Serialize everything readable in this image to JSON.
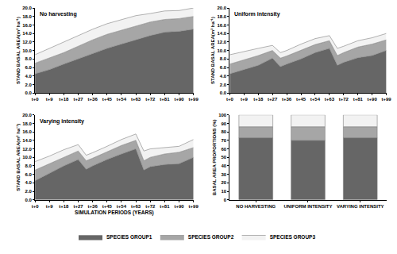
{
  "chart_data": [
    {
      "type": "area",
      "stacked": true,
      "title": "No harvesting",
      "legend": "bottom",
      "ylabel": "STAND BASAL AREA(m² ha⁻¹)",
      "x": [
        0,
        9,
        18,
        27,
        36,
        45,
        54,
        63,
        72,
        81,
        90,
        99
      ],
      "xlim": [
        0,
        99
      ],
      "xticks": [
        {
          "value": 0,
          "label": "t+0"
        },
        {
          "value": 9,
          "label": "t+9"
        },
        {
          "value": 18,
          "label": "t+18"
        },
        {
          "value": 27,
          "label": "t+27"
        },
        {
          "value": 36,
          "label": "t+36"
        },
        {
          "value": 45,
          "label": "t+45"
        },
        {
          "value": 54,
          "label": "t+54"
        },
        {
          "value": 63,
          "label": "t+63"
        },
        {
          "value": 72,
          "label": "t+72"
        },
        {
          "value": 81,
          "label": "t+81"
        },
        {
          "value": 90,
          "label": "t+90"
        },
        {
          "value": 99,
          "label": "t+99"
        }
      ],
      "ylim": [
        0,
        20
      ],
      "yticks": [
        {
          "value": 0,
          "label": "0.0"
        },
        {
          "value": 2,
          "label": "2.0"
        },
        {
          "value": 4,
          "label": "4.0"
        },
        {
          "value": 6,
          "label": "6.0"
        },
        {
          "value": 8,
          "label": "8.0"
        },
        {
          "value": 10,
          "label": "10.0"
        },
        {
          "value": 12,
          "label": "12.0"
        },
        {
          "value": 14,
          "label": "14.0"
        },
        {
          "value": 16,
          "label": "16.0"
        },
        {
          "value": 18,
          "label": "18.0"
        },
        {
          "value": 20,
          "label": "20.0"
        }
      ],
      "grid": false,
      "series": [
        {
          "name": "SPECIES GROUP1",
          "color": "#666666",
          "values": [
            4.5,
            5.5,
            6.8,
            8.0,
            9.3,
            10.5,
            11.5,
            12.5,
            13.5,
            14.3,
            14.5,
            15.0
          ]
        },
        {
          "name": "SPECIES GROUP2",
          "color": "#a6a6a6",
          "values": [
            2.5,
            2.7,
            2.7,
            3.0,
            3.2,
            3.3,
            3.3,
            3.3,
            3.2,
            3.0,
            3.0,
            3.0
          ]
        },
        {
          "name": "SPECIES GROUP3",
          "color": "#f2f2f2",
          "values": [
            2.0,
            2.3,
            2.5,
            2.5,
            2.5,
            2.5,
            2.5,
            2.4,
            2.0,
            2.0,
            1.9,
            2.0
          ]
        }
      ]
    },
    {
      "type": "area",
      "stacked": true,
      "title": "Uniform intensity",
      "ylabel": "STAND BASAL AREA(m² ha⁻¹)",
      "x": [
        0,
        9,
        18,
        27,
        32,
        36,
        45,
        54,
        63,
        68,
        72,
        81,
        90,
        99
      ],
      "xlim": [
        0,
        99
      ],
      "xticks": [
        {
          "value": 0,
          "label": "t+0"
        },
        {
          "value": 9,
          "label": "t+9"
        },
        {
          "value": 18,
          "label": "t+18"
        },
        {
          "value": 27,
          "label": "t+27"
        },
        {
          "value": 36,
          "label": "t+36"
        },
        {
          "value": 45,
          "label": "t+45"
        },
        {
          "value": 54,
          "label": "t+54"
        },
        {
          "value": 63,
          "label": "t+63"
        },
        {
          "value": 72,
          "label": "t+72"
        },
        {
          "value": 81,
          "label": "t+81"
        },
        {
          "value": 90,
          "label": "t+90"
        },
        {
          "value": 99,
          "label": "t+99"
        }
      ],
      "ylim": [
        0,
        20
      ],
      "yticks": [
        {
          "value": 0,
          "label": "0.0"
        },
        {
          "value": 2,
          "label": "2.0"
        },
        {
          "value": 4,
          "label": "4.0"
        },
        {
          "value": 6,
          "label": "6.0"
        },
        {
          "value": 8,
          "label": "8.0"
        },
        {
          "value": 10,
          "label": "10.0"
        },
        {
          "value": 12,
          "label": "12.0"
        },
        {
          "value": 14,
          "label": "14.0"
        },
        {
          "value": 16,
          "label": "16.0"
        },
        {
          "value": 18,
          "label": "18.0"
        },
        {
          "value": 20,
          "label": "20.0"
        }
      ],
      "grid": false,
      "series": [
        {
          "name": "SPECIES GROUP1",
          "color": "#666666",
          "values": [
            4.5,
            5.5,
            6.5,
            8.2,
            6.2,
            6.8,
            8.0,
            9.5,
            10.5,
            6.5,
            7.2,
            8.3,
            8.8,
            10.0
          ]
        },
        {
          "name": "SPECIES GROUP2",
          "color": "#a6a6a6",
          "values": [
            2.3,
            2.3,
            2.3,
            1.8,
            2.0,
            1.9,
            2.0,
            1.9,
            1.8,
            2.3,
            2.3,
            2.5,
            2.7,
            2.5
          ]
        },
        {
          "name": "SPECIES GROUP3",
          "color": "#f2f2f2",
          "values": [
            2.2,
            2.0,
            1.7,
            1.2,
            1.3,
            1.3,
            1.5,
            1.4,
            1.2,
            1.7,
            1.5,
            1.5,
            1.5,
            1.5
          ]
        }
      ]
    },
    {
      "type": "area",
      "stacked": true,
      "title": "Varying intensity",
      "xlabel": "SIMULATION PERIODS (YEARS)",
      "ylabel": "STAND BASAL AREA(m² ha⁻¹)",
      "x": [
        0,
        9,
        18,
        27,
        32,
        36,
        45,
        54,
        63,
        68,
        72,
        81,
        90,
        99
      ],
      "xlim": [
        0,
        99
      ],
      "xticks": [
        {
          "value": 0,
          "label": "t+0"
        },
        {
          "value": 9,
          "label": "t+9"
        },
        {
          "value": 18,
          "label": "t+18"
        },
        {
          "value": 27,
          "label": "t+27"
        },
        {
          "value": 36,
          "label": "t+36"
        },
        {
          "value": 45,
          "label": "t+45"
        },
        {
          "value": 54,
          "label": "t+54"
        },
        {
          "value": 63,
          "label": "t+63"
        },
        {
          "value": 72,
          "label": "t+72"
        },
        {
          "value": 81,
          "label": "t+81"
        },
        {
          "value": 90,
          "label": "t+90"
        },
        {
          "value": 99,
          "label": "t+99"
        }
      ],
      "ylim": [
        0,
        20
      ],
      "yticks": [
        {
          "value": 0,
          "label": "0.0"
        },
        {
          "value": 2,
          "label": "2.0"
        },
        {
          "value": 4,
          "label": "4.0"
        },
        {
          "value": 6,
          "label": "6.0"
        },
        {
          "value": 8,
          "label": "8.0"
        },
        {
          "value": 10,
          "label": "10.0"
        },
        {
          "value": 12,
          "label": "12.0"
        },
        {
          "value": 14,
          "label": "14.0"
        },
        {
          "value": 16,
          "label": "16.0"
        },
        {
          "value": 18,
          "label": "18.0"
        },
        {
          "value": 20,
          "label": "20.0"
        }
      ],
      "grid": false,
      "series": [
        {
          "name": "SPECIES GROUP1",
          "color": "#666666",
          "values": [
            4.5,
            6.3,
            8.0,
            9.5,
            7.2,
            8.0,
            9.5,
            10.8,
            12.0,
            7.0,
            7.8,
            8.3,
            8.5,
            10.0
          ]
        },
        {
          "name": "SPECIES GROUP2",
          "color": "#a6a6a6",
          "values": [
            2.5,
            2.2,
            2.0,
            2.0,
            2.0,
            1.8,
            1.8,
            2.0,
            2.0,
            2.2,
            2.2,
            2.5,
            2.7,
            2.3
          ]
        },
        {
          "name": "SPECIES GROUP3",
          "color": "#f2f2f2",
          "values": [
            2.0,
            1.8,
            1.8,
            1.5,
            1.3,
            1.3,
            1.3,
            1.4,
            1.5,
            2.3,
            2.0,
            1.5,
            1.4,
            1.9
          ]
        }
      ]
    },
    {
      "type": "bar",
      "stacked": true,
      "ylabel": "BASAL AREA PROPORTIONS (%)",
      "categories": [
        "NO HARVESTING",
        "UNIFORM INTENSITY",
        "VARYING INTENSITY"
      ],
      "ylim": [
        0,
        100
      ],
      "yticks": [
        0,
        10,
        20,
        30,
        40,
        50,
        60,
        70,
        80,
        90,
        100
      ],
      "grid": false,
      "series": [
        {
          "name": "SPECIES GROUP1",
          "color": "#666666",
          "values": [
            73,
            70,
            73
          ]
        },
        {
          "name": "SPECIES GROUP2",
          "color": "#a6a6a6",
          "values": [
            13,
            16,
            13
          ]
        },
        {
          "name": "SPECIES GROUP3",
          "color": "#f2f2f2",
          "values": [
            14,
            14,
            14
          ]
        }
      ]
    }
  ]
}
